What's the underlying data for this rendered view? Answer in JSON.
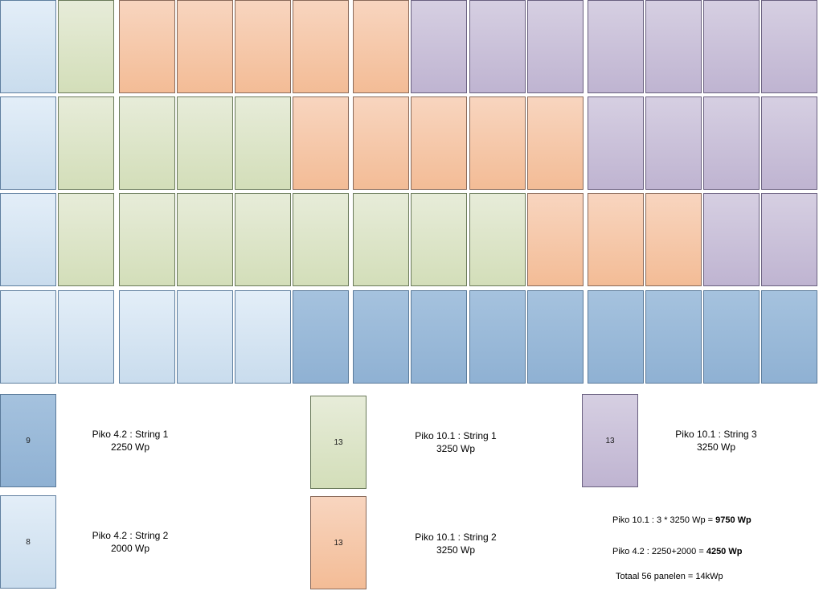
{
  "grid": {
    "rows": [
      [
        "lightblue",
        "green",
        "orange",
        "orange",
        "orange",
        "orange",
        "orange",
        "purple",
        "purple",
        "purple",
        "purple",
        "purple",
        "purple",
        "purple"
      ],
      [
        "lightblue",
        "green",
        "green",
        "green",
        "green",
        "orange",
        "orange",
        "orange",
        "orange",
        "orange",
        "purple",
        "purple",
        "purple",
        "purple"
      ],
      [
        "lightblue",
        "green",
        "green",
        "green",
        "green",
        "green",
        "green",
        "green",
        "green",
        "orange",
        "orange",
        "orange",
        "purple",
        "purple"
      ],
      [
        "lightblue",
        "lightblue",
        "lightblue",
        "lightblue",
        "lightblue",
        "darkblue",
        "darkblue",
        "darkblue",
        "darkblue",
        "darkblue",
        "darkblue",
        "darkblue",
        "darkblue",
        "darkblue"
      ]
    ]
  },
  "legend": [
    {
      "color": "darkblue",
      "count": "9",
      "line1": "Piko 4.2 : String 1",
      "line2": "2250 Wp"
    },
    {
      "color": "lightblue",
      "count": "8",
      "line1": "Piko 4.2 : String 2",
      "line2": "2000 Wp"
    },
    {
      "color": "green",
      "count": "13",
      "line1": "Piko 10.1 : String 1",
      "line2": "3250 Wp"
    },
    {
      "color": "orange",
      "count": "13",
      "line1": "Piko 10.1 : String 2",
      "line2": "3250 Wp"
    },
    {
      "color": "purple",
      "count": "13",
      "line1": "Piko 10.1 : String 3",
      "line2": "3250 Wp"
    }
  ],
  "summary": {
    "piko101_text": "Piko 10.1 : 3 * 3250 Wp = ",
    "piko101_total": "9750 Wp",
    "piko42_text": "Piko 4.2 : 2250+2000 = ",
    "piko42_total": "4250 Wp",
    "total_text": "Totaal 56 panelen = 14kWp"
  },
  "colors": {
    "lightblue": "#d6e4f2",
    "darkblue": "#9bbad9",
    "green": "#dde5c9",
    "orange": "#f5c8a8",
    "purple": "#cac1da"
  }
}
